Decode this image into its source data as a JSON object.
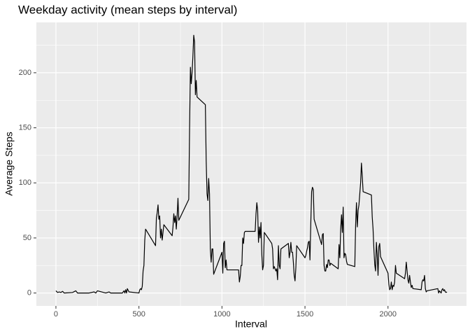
{
  "chart_data": {
    "type": "line",
    "title": "Weekday activity (mean steps by interval)",
    "xlabel": "Interval",
    "ylabel": "Average Steps",
    "color": "#000000",
    "grid": true,
    "xlim": [
      -117.75,
      2472.75
    ],
    "xticks": [
      0,
      500,
      1000,
      1500,
      2000
    ],
    "xminorticks": [
      250,
      750,
      1250,
      1750,
      2250
    ],
    "ylim": [
      -11.7,
      245.7
    ],
    "yticks": [
      0,
      50,
      100,
      150,
      200
    ],
    "yminorticks": [
      25,
      75,
      125,
      175,
      225
    ],
    "x": [
      0,
      10,
      20,
      30,
      40,
      50,
      100,
      120,
      130,
      200,
      230,
      240,
      250,
      300,
      320,
      330,
      400,
      410,
      415,
      420,
      425,
      430,
      440,
      500,
      505,
      510,
      515,
      520,
      525,
      530,
      535,
      540,
      600,
      605,
      610,
      615,
      620,
      625,
      630,
      635,
      640,
      645,
      650,
      700,
      705,
      710,
      715,
      720,
      725,
      730,
      735,
      740,
      800,
      805,
      810,
      815,
      820,
      825,
      830,
      835,
      840,
      845,
      850,
      900,
      905,
      910,
      915,
      920,
      925,
      930,
      935,
      940,
      945,
      950,
      1000,
      1005,
      1010,
      1015,
      1020,
      1025,
      1030,
      1100,
      1105,
      1110,
      1115,
      1120,
      1125,
      1130,
      1135,
      1140,
      1200,
      1205,
      1210,
      1215,
      1220,
      1225,
      1230,
      1235,
      1240,
      1245,
      1250,
      1255,
      1300,
      1305,
      1310,
      1315,
      1320,
      1325,
      1330,
      1335,
      1340,
      1345,
      1350,
      1355,
      1400,
      1405,
      1410,
      1415,
      1420,
      1425,
      1430,
      1435,
      1440,
      1445,
      1450,
      1500,
      1505,
      1510,
      1515,
      1520,
      1525,
      1530,
      1535,
      1540,
      1545,
      1550,
      1555,
      1600,
      1605,
      1610,
      1615,
      1620,
      1625,
      1630,
      1635,
      1640,
      1645,
      1650,
      1655,
      1700,
      1705,
      1710,
      1715,
      1720,
      1725,
      1730,
      1735,
      1740,
      1745,
      1750,
      1755,
      1800,
      1805,
      1810,
      1815,
      1820,
      1825,
      1830,
      1835,
      1840,
      1845,
      1850,
      1900,
      1905,
      1910,
      1915,
      1920,
      1925,
      1930,
      1935,
      1940,
      1945,
      1950,
      1955,
      2000,
      2005,
      2010,
      2015,
      2020,
      2025,
      2030,
      2035,
      2040,
      2045,
      2050,
      2100,
      2105,
      2110,
      2115,
      2120,
      2125,
      2130,
      2135,
      2140,
      2145,
      2150,
      2200,
      2205,
      2210,
      2215,
      2220,
      2225,
      2230,
      2235,
      2300,
      2305,
      2310,
      2315,
      2320,
      2325,
      2330,
      2335,
      2340,
      2345,
      2350,
      2355
    ],
    "values": [
      2,
      0.5,
      1,
      0.5,
      1.5,
      0,
      0.5,
      2,
      0,
      0,
      1,
      0,
      2,
      0,
      1,
      0,
      0,
      2,
      0,
      3,
      0,
      4,
      1,
      0,
      3,
      4,
      3,
      6,
      20,
      25,
      48,
      58,
      43,
      68,
      73,
      80,
      67,
      70,
      50,
      58,
      48,
      55,
      62,
      52,
      60,
      72,
      64,
      70,
      58,
      70,
      86,
      66,
      85,
      150,
      205,
      190,
      200,
      215,
      234,
      228,
      180,
      193,
      178,
      171,
      120,
      90,
      84,
      104,
      90,
      40,
      28,
      40,
      40,
      17,
      37,
      18,
      45,
      47,
      23,
      30,
      21,
      21,
      10,
      15,
      25,
      25,
      50,
      45,
      55,
      56,
      56,
      72,
      82,
      75,
      46,
      60,
      50,
      64,
      35,
      21,
      25,
      55,
      45,
      40,
      22,
      24,
      22,
      20,
      22,
      12,
      43,
      25,
      22,
      40,
      45,
      32,
      37,
      46,
      37,
      37,
      28,
      16,
      11,
      23,
      43,
      32,
      34,
      38,
      41,
      46,
      47,
      30,
      63,
      92,
      96,
      94,
      67,
      44,
      53,
      54,
      25,
      20,
      20,
      26,
      23,
      30,
      30,
      25,
      27,
      22,
      44,
      32,
      58,
      71,
      55,
      78,
      32,
      36,
      35,
      29,
      26,
      24,
      62,
      82,
      60,
      75,
      80,
      90,
      100,
      118,
      106,
      92,
      89,
      69,
      58,
      40,
      26,
      20,
      46,
      35,
      16,
      42,
      45,
      33,
      18,
      8,
      3,
      4,
      10,
      3,
      7,
      6,
      10,
      25,
      18,
      13,
      18,
      28,
      20,
      12,
      9,
      16,
      10,
      5,
      7,
      4,
      3,
      10,
      12,
      11,
      16,
      4,
      1,
      2,
      4,
      0,
      2,
      1,
      0,
      3,
      4,
      2,
      3,
      1,
      0.5,
      1
    ]
  }
}
